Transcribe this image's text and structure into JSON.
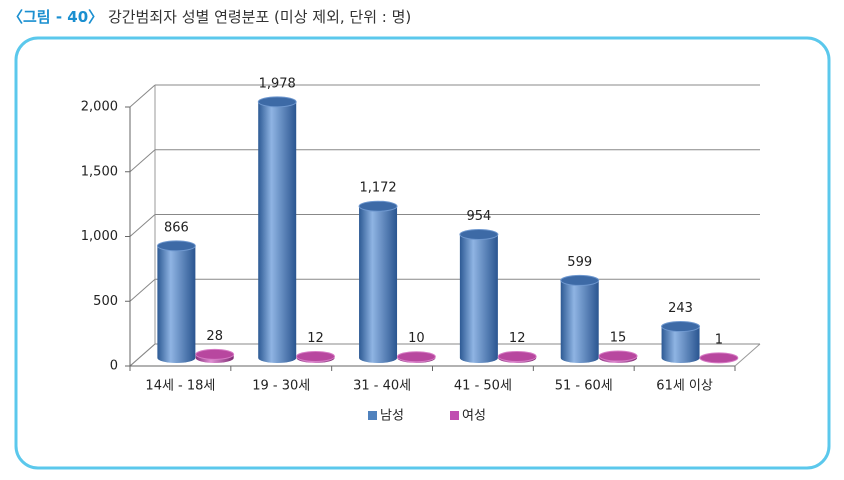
{
  "chart_data": {
    "type": "bar",
    "figure_label": "〈그림 - 40〉",
    "title": "강간범죄자 성별 연령분포 (미상 제외, 단위 : 명)",
    "categories": [
      "14세 - 18세",
      "19 - 30세",
      "31 - 40세",
      "41 - 50세",
      "51 - 60세",
      "61세 이상"
    ],
    "series": [
      {
        "name": "남성",
        "color": "#4f81bd",
        "values": [
          866,
          1978,
          1172,
          954,
          599,
          243
        ],
        "value_labels": [
          "866",
          "1,978",
          "1,172",
          "954",
          "599",
          "243"
        ]
      },
      {
        "name": "여성",
        "color": "#c04fb0",
        "values": [
          28,
          12,
          10,
          12,
          15,
          1
        ]
      }
    ],
    "ylim": [
      0,
      2000
    ],
    "yticks": [
      0,
      500,
      {
        "value": 1000,
        "label": "1,000"
      },
      {
        "value": 1500,
        "label": "1,500"
      },
      {
        "value": 2000,
        "label": "2,000"
      }
    ],
    "grid": true,
    "legend": "bottom"
  }
}
